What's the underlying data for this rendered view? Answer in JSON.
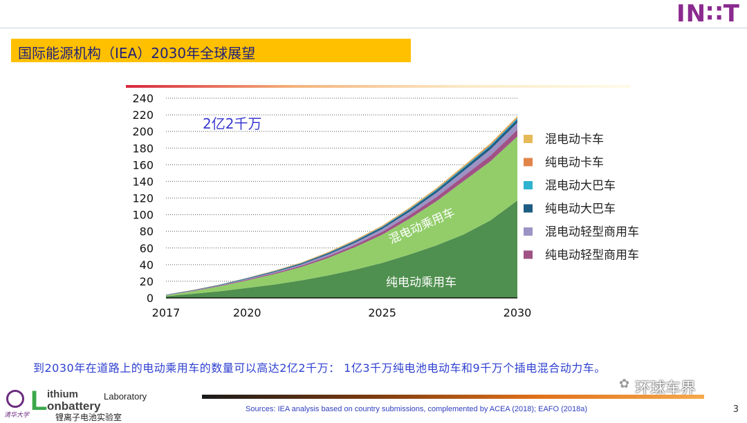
{
  "header": {
    "logo_text": "IN∷T",
    "title": "国际能源机构（IEA）2030年全球展望"
  },
  "colors": {
    "title_bar": "#ffc000",
    "bev_passenger": "#4f8f4f",
    "phev_passenger": "#92cd6a",
    "bev_light_commercial": "#a05286",
    "phev_light_commercial": "#9c93c4",
    "bev_bus": "#1f5c82",
    "phev_bus": "#2fb3cf",
    "bev_truck": "#e0844a",
    "phev_truck": "#e6b957"
  },
  "chart_data": {
    "type": "area",
    "stacked": true,
    "annotation": "2亿2千万",
    "x": [
      2017,
      2018,
      2019,
      2020,
      2021,
      2022,
      2023,
      2024,
      2025,
      2026,
      2027,
      2028,
      2029,
      2030
    ],
    "xticks": [
      "2017",
      "2020",
      "2025",
      "2030"
    ],
    "xtick_values": [
      2017,
      2020,
      2025,
      2030
    ],
    "yticks": [
      "0",
      "20",
      "40",
      "60",
      "80",
      "100",
      "120",
      "140",
      "160",
      "180",
      "200",
      "220",
      "240"
    ],
    "ylim": [
      0,
      240
    ],
    "grid": "horizontal dotted",
    "legend_position": "right",
    "series": [
      {
        "name": "纯电动乘用车",
        "color": "#4f8f4f",
        "values": [
          2,
          5,
          8,
          12,
          16,
          21,
          27,
          34,
          42,
          52,
          63,
          76,
          93,
          117
        ]
      },
      {
        "name": "混电动乘用车",
        "color": "#92cd6a",
        "values": [
          1,
          3,
          6,
          9,
          12.5,
          16,
          21,
          27,
          34,
          43,
          53,
          64,
          71,
          77
        ]
      },
      {
        "name": "纯电动轻型商用车",
        "color": "#a05286",
        "values": [
          0.2,
          0.4,
          0.6,
          0.9,
          1.2,
          1.6,
          2.1,
          2.7,
          3.4,
          4.2,
          5.1,
          6.0,
          7.0,
          8.0
        ]
      },
      {
        "name": "混电动轻型商用车",
        "color": "#9c93c4",
        "values": [
          0.2,
          0.4,
          0.6,
          0.9,
          1.2,
          1.6,
          2.1,
          2.7,
          3.4,
          4.2,
          5.1,
          6.2,
          7.4,
          8.5
        ]
      },
      {
        "name": "纯电动大巴车",
        "color": "#1f5c82",
        "values": [
          0.4,
          0.5,
          0.6,
          0.8,
          1.0,
          1.2,
          1.5,
          1.8,
          2.1,
          2.5,
          2.9,
          3.3,
          3.7,
          4.0
        ]
      },
      {
        "name": "混电动大巴车",
        "color": "#2fb3cf",
        "values": [
          0.1,
          0.1,
          0.2,
          0.2,
          0.3,
          0.4,
          0.5,
          0.6,
          0.7,
          0.8,
          1.0,
          1.1,
          1.3,
          1.5
        ]
      },
      {
        "name": "纯电动卡车",
        "color": "#e0844a",
        "values": [
          0.05,
          0.1,
          0.1,
          0.2,
          0.3,
          0.4,
          0.5,
          0.6,
          0.7,
          0.8,
          0.9,
          1.0,
          1.1,
          1.2
        ]
      },
      {
        "name": "混电动卡车",
        "color": "#e6b957",
        "values": [
          0.05,
          0.1,
          0.1,
          0.2,
          0.3,
          0.4,
          0.5,
          0.6,
          0.7,
          0.8,
          0.9,
          1.0,
          1.1,
          1.3
        ]
      }
    ],
    "legend": [
      "混电动卡车",
      "纯电动卡车",
      "混电动大巴车",
      "纯电动大巴车",
      "混电动轻型商用车",
      "纯电动轻型商用车"
    ],
    "area_labels": [
      "混电动乘用车",
      "纯电动乘用车"
    ]
  },
  "caption": "到2030年在道路上的电动乘用车的数量可以高达2亿2千万： 1亿3千万纯电池电动车和9千万个插电混合动力车。",
  "footer": {
    "sources": "Sources: IEA analysis based on country submissions, complemented by ACEA (2018); EAFO (2018a)",
    "page_number": "3",
    "lab_initial": "L",
    "lab_word1": "ithium",
    "lab_word2": "onbattery",
    "lab_word3": "Laboratory",
    "lab_cn": "锂离子电池实验室",
    "university": "清华大学",
    "watermark": "环球车界"
  }
}
